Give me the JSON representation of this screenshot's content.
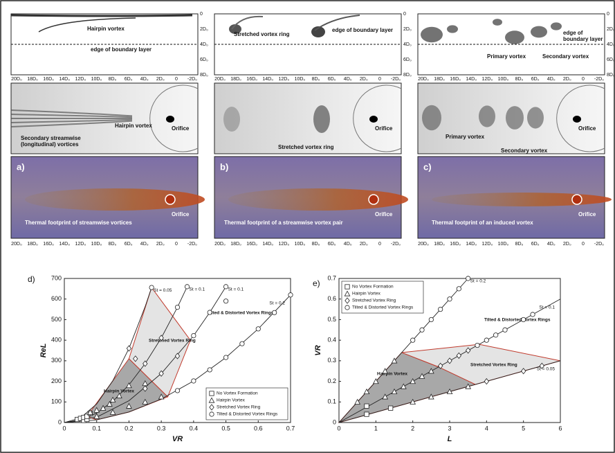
{
  "axes": {
    "side_ticks": [
      "0",
      "2D₀",
      "4D₀",
      "6D₀",
      "8D₀"
    ],
    "x_ticks": [
      "20D₀",
      "18D₀",
      "16D₀",
      "14D₀",
      "12D₀",
      "10D₀",
      "8D₀",
      "6D₀",
      "4D₀",
      "2D₀",
      "0",
      "-2D₀"
    ]
  },
  "panels": [
    {
      "side": [
        "Hairpin vortex",
        "edge of boundary layer"
      ],
      "top": [
        "Secondary streamwise",
        "(longitudinal) vortices",
        "Hairpin vortex",
        "Orifice"
      ],
      "thermal": [
        "a)",
        "Thermal footprint of streamwise vortices",
        "Orifice"
      ]
    },
    {
      "side": [
        "Stretched vortex ring",
        "edge of boundary layer"
      ],
      "top": [
        "Stretched vortex ring",
        "Orifice"
      ],
      "thermal": [
        "b)",
        "Thermal footprint of a streamwise vortex pair",
        "Orifice"
      ]
    },
    {
      "side": [
        "edge of",
        "boundary layer",
        "Primary vortex",
        "Secondary vortex"
      ],
      "top": [
        "Primary vortex",
        "Secondary vortex",
        "Orifice"
      ],
      "thermal": [
        "c)",
        "Thermal footprint of an induced vortex",
        "Orifice"
      ]
    }
  ],
  "chart_data": [
    {
      "type": "line",
      "label": "d)",
      "xlabel": "VR",
      "ylabel": "ReL",
      "xlim": [
        0,
        0.7
      ],
      "xticks": [
        0,
        0.1,
        0.2,
        0.3,
        0.4,
        0.5,
        0.6,
        0.7
      ],
      "ylim": [
        0,
        700
      ],
      "yticks": [
        0,
        100,
        200,
        300,
        400,
        500,
        600,
        700
      ],
      "legend": "lower right",
      "regions": [
        {
          "label": "Hairpin Vortex",
          "fill": "#a8a8a8",
          "x": [
            0.07,
            0.2,
            0.32,
            0.2,
            0.1
          ],
          "y": [
            30,
            310,
            125,
            51,
            13
          ]
        },
        {
          "label": "Stretched Vortex Ring",
          "fill": "#e4e4e4",
          "x": [
            0.2,
            0.27,
            0.39,
            0.32
          ],
          "y": [
            310,
            656,
            400,
            125
          ]
        }
      ],
      "annotations": [
        "Tilted & Distorted Vortex Rings"
      ],
      "curves": [
        {
          "name": "St = 0.05",
          "x": [
            0,
            0.05,
            0.1,
            0.15,
            0.2,
            0.25,
            0.27
          ],
          "y": [
            0,
            22,
            90,
            203,
            360,
            563,
            656
          ]
        },
        {
          "name": "St = 0.1",
          "x": [
            0,
            0.05,
            0.1,
            0.15,
            0.2,
            0.25,
            0.3,
            0.35,
            0.38
          ],
          "y": [
            0,
            11,
            46,
            103,
            183,
            286,
            411,
            560,
            660
          ]
        },
        {
          "name": "St = 0.1",
          "x": [
            0,
            0.1,
            0.2,
            0.3,
            0.4,
            0.45,
            0.5
          ],
          "y": [
            0,
            26,
            106,
            238,
            422,
            535,
            660
          ]
        },
        {
          "name": "St = 0.2",
          "x": [
            0,
            0.1,
            0.2,
            0.3,
            0.4,
            0.5,
            0.6,
            0.7
          ],
          "y": [
            0,
            13,
            51,
            114,
            202,
            316,
            455,
            620
          ]
        }
      ],
      "series": [
        {
          "name": "No Vortex Formation",
          "marker": "square",
          "x": [
            0.04,
            0.05,
            0.06,
            0.06,
            0.07,
            0.07,
            0.08
          ],
          "y": [
            15,
            20,
            10,
            25,
            15,
            30,
            45
          ]
        },
        {
          "name": "Hairpin Vortex",
          "marker": "triangle",
          "x": [
            0.08,
            0.1,
            0.1,
            0.12,
            0.14,
            0.15,
            0.17,
            0.2,
            0.2,
            0.25,
            0.3,
            0.15,
            0.25
          ],
          "y": [
            50,
            60,
            30,
            70,
            90,
            110,
            130,
            180,
            80,
            100,
            125,
            50,
            190
          ]
        },
        {
          "name": "Stretched Vortex Ring",
          "marker": "diamond",
          "x": [
            0.2,
            0.22,
            0.25,
            0.3,
            0.3,
            0.35,
            0.25
          ],
          "y": [
            360,
            310,
            286,
            238,
            411,
            323,
            165
          ]
        },
        {
          "name": "Tilted & Distorted Vortex Rings",
          "marker": "circle",
          "x": [
            0.27,
            0.35,
            0.38,
            0.4,
            0.45,
            0.5,
            0.5,
            0.35,
            0.4,
            0.45,
            0.5,
            0.55,
            0.6,
            0.65,
            0.7
          ],
          "y": [
            656,
            560,
            660,
            422,
            535,
            590,
            660,
            155,
            202,
            256,
            316,
            383,
            455,
            534,
            620
          ]
        }
      ]
    },
    {
      "type": "line",
      "label": "e)",
      "xlabel": "L",
      "ylabel": "VR",
      "xlim": [
        0,
        6
      ],
      "xticks": [
        0,
        1,
        2,
        3,
        4,
        5,
        6
      ],
      "ylim": [
        0,
        0.7
      ],
      "yticks": [
        0,
        0.1,
        0.2,
        0.3,
        0.4,
        0.5,
        0.6,
        0.7
      ],
      "legend": "upper left",
      "regions": [
        {
          "label": "Hairpin Vortex",
          "fill": "#a8a8a8",
          "x": [
            0,
            1.7,
            2.7,
            3.7
          ],
          "y": [
            0,
            0.34,
            0.27,
            0.185
          ]
        },
        {
          "label": "Stretched Vortex Ring",
          "fill": "#e4e4e4",
          "x": [
            1.7,
            3.8,
            6,
            3.7,
            2.7
          ],
          "y": [
            0.34,
            0.38,
            0.3,
            0.185,
            0.27
          ]
        }
      ],
      "annotations": [
        "Tilted & Distorted Vortex Rings"
      ],
      "curves": [
        {
          "name": "St = 0.2",
          "x": [
            0,
            3.5
          ],
          "y": [
            0,
            0.7
          ]
        },
        {
          "name": "St = 0.1",
          "x": [
            0,
            6
          ],
          "y": [
            0,
            0.6
          ]
        },
        {
          "name": "St = 0.05",
          "x": [
            0,
            6
          ],
          "y": [
            0,
            0.3
          ]
        }
      ],
      "series": [
        {
          "name": "No Vortex Formation",
          "marker": "square",
          "x": [
            0.75,
            0.75,
            1.4
          ],
          "y": [
            0.04,
            0.08,
            0.07
          ]
        },
        {
          "name": "Hairpin Vortex",
          "marker": "triangle",
          "x": [
            0.5,
            0.75,
            1,
            1.25,
            1.5,
            1.25,
            1.5,
            1.75,
            2,
            2.25,
            2.5,
            2,
            2.5,
            3,
            3.5
          ],
          "y": [
            0.1,
            0.15,
            0.2,
            0.25,
            0.3,
            0.125,
            0.15,
            0.175,
            0.2,
            0.225,
            0.25,
            0.1,
            0.125,
            0.15,
            0.175
          ]
        },
        {
          "name": "Stretched Vortex Ring",
          "marker": "diamond",
          "x": [
            2.75,
            3,
            3.25,
            3.5,
            4,
            5,
            5.5
          ],
          "y": [
            0.275,
            0.3,
            0.325,
            0.35,
            0.2,
            0.25,
            0.275
          ]
        },
        {
          "name": "Tilted & Distorted Vortex Rings",
          "marker": "circle",
          "x": [
            2,
            2.25,
            2.5,
            2.75,
            3,
            3.25,
            3.5,
            3.75,
            4,
            4.25,
            4.5,
            5,
            5.25
          ],
          "y": [
            0.4,
            0.45,
            0.5,
            0.55,
            0.6,
            0.65,
            0.7,
            0.375,
            0.4,
            0.425,
            0.45,
            0.5,
            0.525
          ]
        }
      ]
    }
  ]
}
